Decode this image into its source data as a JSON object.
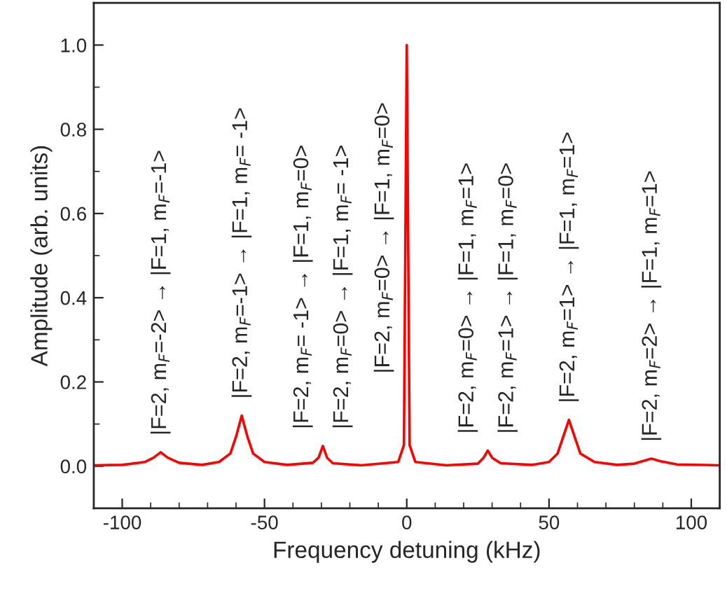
{
  "chart_data": {
    "type": "line",
    "xlabel": "Frequency detuning (kHz)",
    "ylabel": "Amplitude (arb. units)",
    "x": [
      -110,
      -100,
      -92,
      -89,
      -86.5,
      -84,
      -80,
      -72,
      -66,
      -62,
      -60,
      -58,
      -56,
      -54,
      -50,
      -42,
      -33,
      -31,
      -29.5,
      -28,
      -26,
      -16,
      -3,
      -1,
      0,
      1,
      3,
      14,
      25,
      27,
      28.5,
      30,
      33,
      44,
      50,
      53,
      55,
      57,
      59,
      61,
      66,
      74,
      80,
      84,
      86,
      89,
      95,
      110
    ],
    "series": [
      {
        "color": "#ff0000",
        "values": [
          0.002,
          0.003,
          0.01,
          0.02,
          0.033,
          0.02,
          0.008,
          0.003,
          0.01,
          0.03,
          0.07,
          0.12,
          0.07,
          0.03,
          0.01,
          0.003,
          0.008,
          0.02,
          0.048,
          0.02,
          0.007,
          0.002,
          0.01,
          0.05,
          1.0,
          0.05,
          0.01,
          0.002,
          0.006,
          0.02,
          0.037,
          0.02,
          0.007,
          0.003,
          0.01,
          0.03,
          0.07,
          0.11,
          0.07,
          0.03,
          0.01,
          0.003,
          0.006,
          0.014,
          0.018,
          0.012,
          0.004,
          0.002
        ]
      }
    ],
    "xlim": [
      -110,
      110
    ],
    "xticks": [
      -100,
      -50,
      0,
      50,
      100
    ],
    "ylim": [
      -0.1,
      1.1
    ],
    "yticks": [
      {
        "value": 0,
        "label": "0.0"
      },
      {
        "value": 0.2,
        "label": "0.2"
      },
      {
        "value": 0.4,
        "label": "0.4"
      },
      {
        "value": 0.6,
        "label": "0.6"
      },
      {
        "value": 0.8,
        "label": "0.8"
      },
      {
        "value": 1.0,
        "label": "1.0"
      }
    ],
    "grid": false,
    "legend": false,
    "marker": "none",
    "line_style": "solid",
    "annotations": [
      {
        "text": "|F=2, m$_{F}$=-2> → |F=1, m$_{F}$=-1>",
        "x": -86.5,
        "y": 0.033
      },
      {
        "text": "|F=2, m$_{F}$=-1> → |F=1, m$_{F}$= -1>",
        "x": -58,
        "y": 0.12
      },
      {
        "text": "|F=2, m$_{F}$= -1> → |F=1, m$_{F}$=0>",
        "x": -29.5,
        "y": 0.048
      },
      {
        "text": "|F=2, m$_{F}$=0> → |F=1, m$_{F}$= -1>",
        "x": -29.5,
        "y": 0.048
      },
      {
        "text": "|F=2, m$_{F}$=0> → |F=1, m$_{F}$=0>",
        "x": 0,
        "y": 1.0
      },
      {
        "text": "|F=2, m$_{F}$=0> → |F=1, m$_{F}$=1>",
        "x": 28.5,
        "y": 0.037
      },
      {
        "text": "|F=2, m$_{F}$=1> → |F=1, m$_{F}$=0>",
        "x": 28.5,
        "y": 0.037
      },
      {
        "text": "|F=2, m$_{F}$=1> → |F=1, m$_{F}$=1>",
        "x": 57,
        "y": 0.11
      },
      {
        "text": "|F=2, m$_{F}$=2> → |F=1, m$_{F}$=1>",
        "x": 86,
        "y": 0.018
      }
    ]
  }
}
